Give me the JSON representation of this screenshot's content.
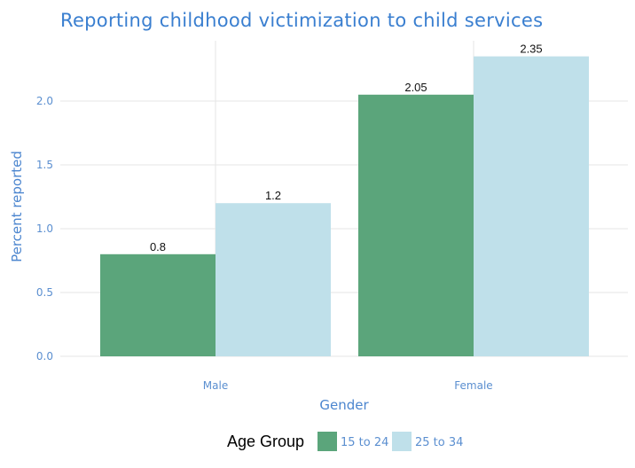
{
  "chart_data": {
    "type": "bar",
    "title": "Reporting childhood victimization to child services",
    "xlabel": "Gender",
    "ylabel": "Percent reported",
    "categories": [
      "Male",
      "Female"
    ],
    "series": [
      {
        "name": "15 to 24",
        "values": [
          0.8,
          2.05
        ],
        "color": "#5ba57b"
      },
      {
        "name": "25 to 34",
        "values": [
          1.2,
          2.35
        ],
        "color": "#bfe0ea"
      }
    ],
    "yticks": [
      "0.0",
      "0.5",
      "1.0",
      "1.5",
      "2.0"
    ],
    "ylim": [
      0,
      2.35
    ],
    "grid": true,
    "legend": {
      "title": "Age Group",
      "position": "bottom"
    }
  }
}
